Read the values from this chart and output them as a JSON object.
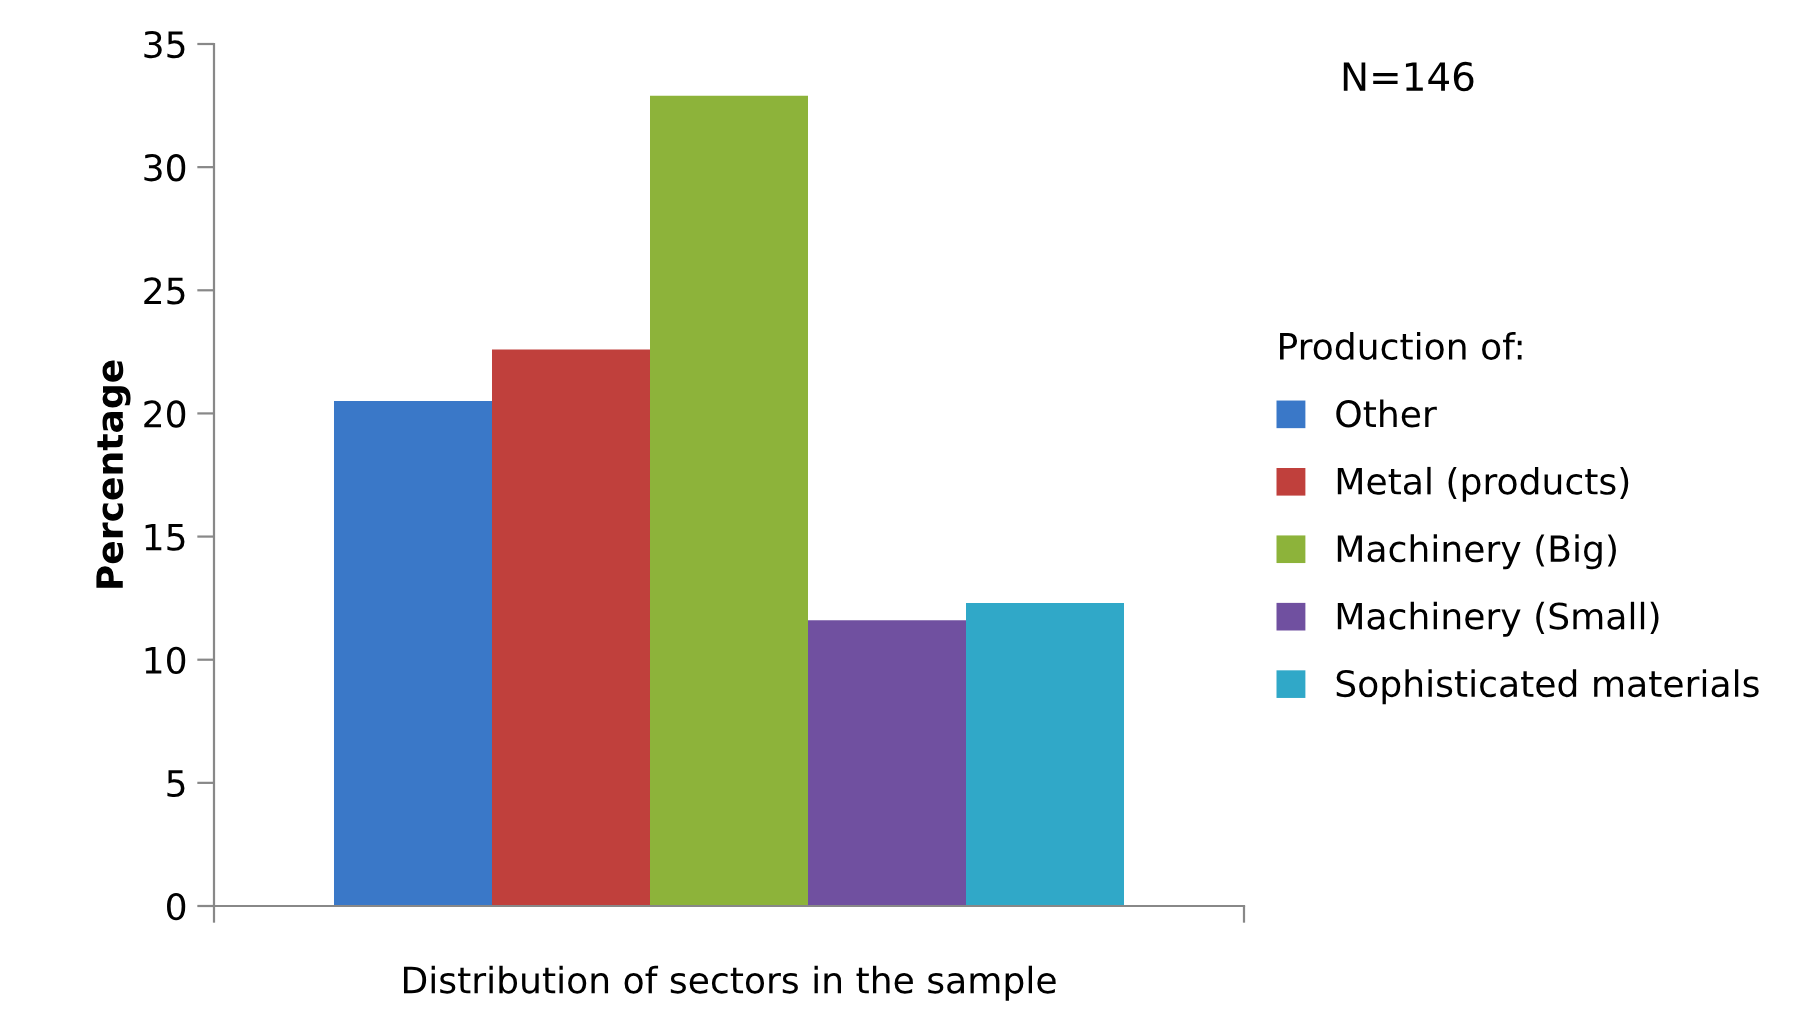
{
  "chart_data": {
    "type": "bar",
    "categories": [
      null
    ],
    "xlabel": "Distribution of sectors in the sample",
    "ylabel": "Percentage",
    "legend_title": "Production of:",
    "annotations": [
      "N=146"
    ],
    "ylim": [
      0,
      35
    ],
    "yticks": [
      0,
      5,
      10,
      15,
      20,
      25,
      30,
      35
    ],
    "grid": false,
    "legend": "right",
    "series": [
      {
        "name": "Other",
        "color": "#3a78c8",
        "values": [
          20.5
        ]
      },
      {
        "name": "Metal (products)",
        "color": "#c0403c",
        "values": [
          22.6
        ]
      },
      {
        "name": "Machinery (Big)",
        "color": "#8db33a",
        "values": [
          32.9
        ]
      },
      {
        "name": "Machinery (Small)",
        "color": "#7050a0",
        "values": [
          11.6
        ]
      },
      {
        "name": "Sophisticated materials",
        "color": "#30a8c8",
        "values": [
          12.3
        ]
      }
    ]
  }
}
